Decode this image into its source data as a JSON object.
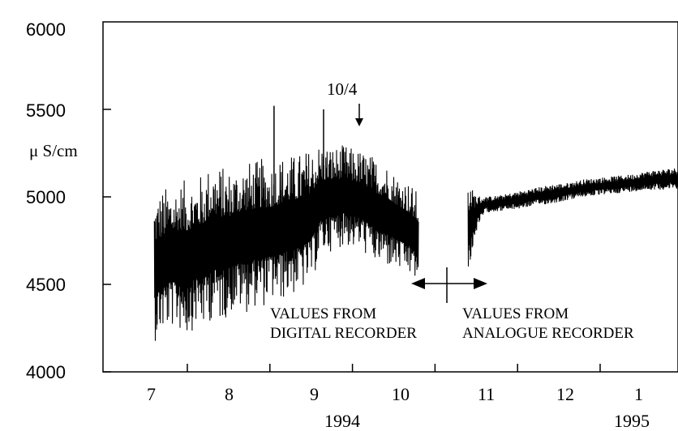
{
  "chart_data": {
    "type": "line",
    "title": "",
    "ylabel": "μ S/cm",
    "xlabel": "",
    "ylim": [
      4000,
      6000
    ],
    "y_ticks": [
      "4000",
      "4500",
      "5000",
      "5500",
      "6000"
    ],
    "x_ticks": [
      "7",
      "8",
      "9",
      "10",
      "11",
      "12",
      "1"
    ],
    "year_labels": [
      "1994",
      "1995"
    ],
    "grid": false,
    "series": [
      {
        "segment": "digital",
        "x_months": [
          6.6,
          6.7,
          6.8,
          6.9,
          7.0,
          7.1,
          7.2,
          7.3,
          7.4,
          7.5,
          7.6,
          7.7,
          7.8,
          7.9,
          8.0,
          8.1,
          8.2,
          8.3,
          8.4,
          8.5,
          8.6,
          8.7,
          8.8,
          8.9,
          9.0,
          9.1,
          9.2,
          9.3,
          9.4,
          9.5,
          9.6,
          9.7,
          9.8
        ],
        "low": [
          4170,
          4210,
          4250,
          4230,
          4200,
          4260,
          4240,
          4300,
          4280,
          4320,
          4350,
          4330,
          4370,
          4360,
          4400,
          4390,
          4420,
          4440,
          4460,
          4500,
          4640,
          4680,
          4700,
          4720,
          4700,
          4690,
          4650,
          4600,
          4600,
          4580,
          4560,
          4540,
          4500
        ],
        "high": [
          5020,
          5050,
          5070,
          5090,
          5100,
          5110,
          5140,
          5200,
          5180,
          5160,
          5180,
          5210,
          5200,
          5220,
          5200,
          5230,
          5250,
          5240,
          5260,
          5280,
          5310,
          5300,
          5290,
          5300,
          5280,
          5270,
          5250,
          5220,
          5200,
          5150,
          5120,
          5080,
          5020
        ]
      },
      {
        "segment": "analogue",
        "x_months": [
          10.4,
          10.5,
          10.6,
          10.8,
          11.0,
          11.2,
          11.4,
          11.6,
          11.8,
          12.0,
          12.2,
          12.4,
          12.6,
          12.8,
          13.0,
          13.1
        ],
        "low": [
          4570,
          4800,
          4910,
          4920,
          4930,
          4950,
          4960,
          4980,
          5000,
          5010,
          5020,
          5030,
          5040,
          5040,
          5050,
          5050
        ],
        "high": [
          5080,
          5010,
          5000,
          5010,
          5030,
          5050,
          5070,
          5080,
          5100,
          5110,
          5120,
          5130,
          5150,
          5160,
          5170,
          5160
        ]
      }
    ],
    "spikes": [
      {
        "x_month": 8.05,
        "value": 5520
      },
      {
        "x_month": 8.65,
        "value": 5500
      }
    ],
    "annotations": {
      "marker": "10/4",
      "digital_line1": "VALUES FROM",
      "digital_line2": "DIGITAL RECORDER",
      "analogue_line1": "VALUES FROM",
      "analogue_line2": "ANALOGUE RECORDER"
    }
  }
}
